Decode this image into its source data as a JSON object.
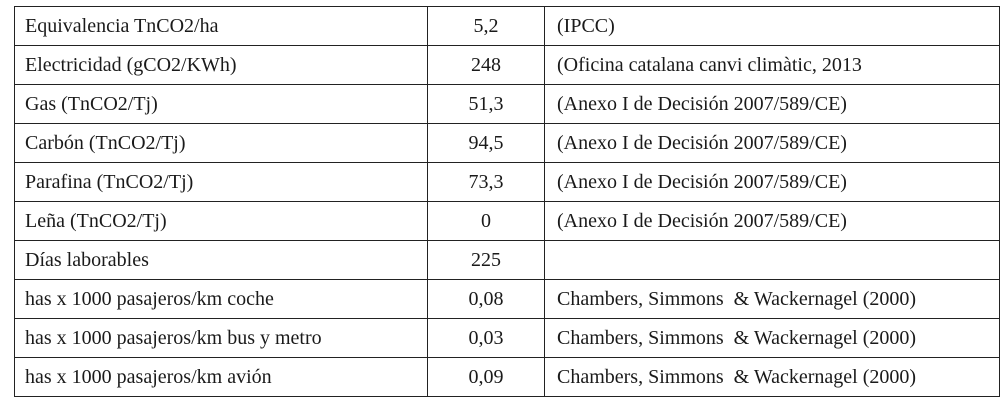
{
  "table": {
    "rows": [
      [
        "Equivalencia TnCO2/ha",
        "5,2",
        "(IPCC)"
      ],
      [
        "Electricidad (gCO2/KWh)",
        "248",
        "(Oficina catalana canvi climàtic, 2013"
      ],
      [
        "Gas (TnCO2/Tj)",
        "51,3",
        "(Anexo I de Decisión 2007/589/CE)"
      ],
      [
        "Carbón (TnCO2/Tj)",
        "94,5",
        "(Anexo I de Decisión 2007/589/CE)"
      ],
      [
        "Parafina (TnCO2/Tj)",
        "73,3",
        "(Anexo I de Decisión 2007/589/CE)"
      ],
      [
        "Leña (TnCO2/Tj)",
        "0",
        "(Anexo I de Decisión 2007/589/CE)"
      ],
      [
        "Días laborables",
        "225",
        null
      ],
      [
        "has x 1000 pasajeros/km coche",
        "0,08",
        "Chambers, Simmons  & Wackernagel (2000)"
      ],
      [
        "has x 1000 pasajeros/km bus y metro",
        "0,03",
        "Chambers, Simmons  & Wackernagel (2000)"
      ],
      [
        "has x 1000 pasajeros/km avión",
        "0,09",
        "Chambers, Simmons  & Wackernagel (2000)"
      ]
    ]
  }
}
